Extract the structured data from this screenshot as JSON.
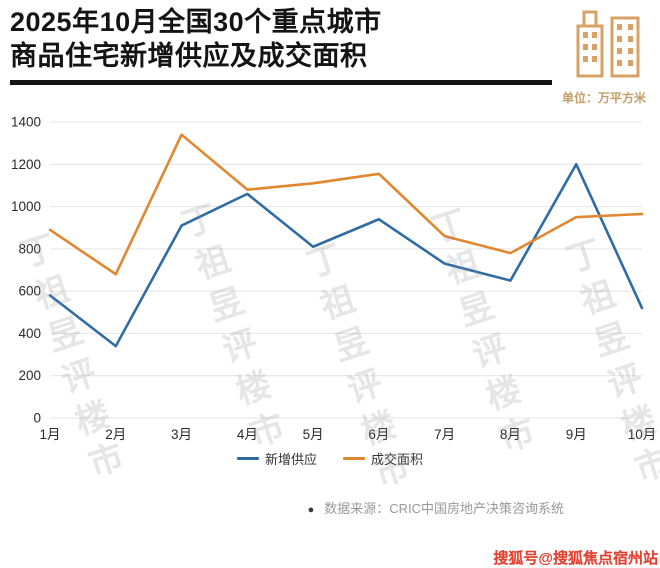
{
  "header": {
    "title_line1": "2025年10月全国30个重点城市",
    "title_line2": "商品住宅新增供应及成交面积",
    "unit_label": "单位：万平方米"
  },
  "chart_data": {
    "type": "line",
    "categories": [
      "1月",
      "2月",
      "3月",
      "4月",
      "5月",
      "6月",
      "7月",
      "8月",
      "9月",
      "10月"
    ],
    "series": [
      {
        "name": "新增供应",
        "color": "#2f6ca5",
        "values": [
          580,
          340,
          910,
          1060,
          810,
          940,
          730,
          650,
          1200,
          520
        ]
      },
      {
        "name": "成交面积",
        "color": "#e2862f",
        "values": [
          890,
          680,
          1340,
          1080,
          1110,
          1155,
          860,
          780,
          950,
          965
        ]
      }
    ],
    "ylim": [
      0,
      1400
    ],
    "yticks": [
      0,
      200,
      400,
      600,
      800,
      1000,
      1200,
      1400
    ],
    "grid": true,
    "legend_position": "bottom",
    "title": "2025年10月全国30个重点城市商品住宅新增供应及成交面积",
    "xlabel": "",
    "ylabel": "万平方米"
  },
  "watermark": {
    "text": "丁祖昱评楼市"
  },
  "footer": {
    "source": "数据来源：CRIC中国房地产决策咨询系统",
    "red_watermark": "搜狐号@搜狐焦点宿州站"
  },
  "colors": {
    "blue": "#2f6ca5",
    "orange": "#e2862f",
    "title": "#141414",
    "unit_gold": "#c2a067",
    "grid": "#e4e4e4",
    "source_gray": "#999999",
    "red": "#e8402e"
  },
  "icons": {
    "buildings_icon": "city-buildings"
  }
}
